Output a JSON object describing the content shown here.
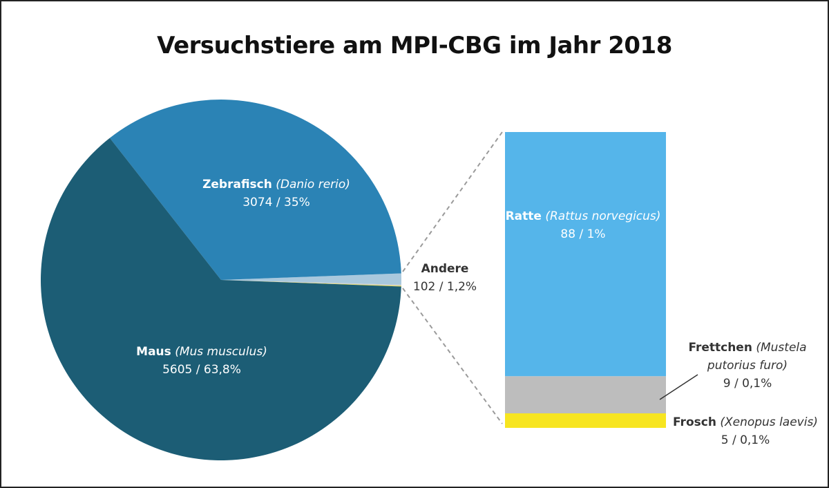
{
  "chart_data": {
    "type": "pie",
    "title": "Versuchstiere am MPI-CBG im Jahr 2018",
    "slices": [
      {
        "name": "Maus",
        "latin": "(Mus musculus)",
        "value": 5605,
        "percent_label": "5605 / 63,8%",
        "color": "#1c5d75"
      },
      {
        "name": "Zebrafisch",
        "latin": "(Danio rerio)",
        "value": 3074,
        "percent_label": "3074 / 35%",
        "color": "#2b83b5"
      },
      {
        "name": "Andere",
        "latin": "",
        "value": 102,
        "percent_label": "102 / 1,2%",
        "color": "#a9c8dd"
      }
    ],
    "breakdown": {
      "of": "Andere",
      "type": "stacked_bar",
      "segments": [
        {
          "name": "Ratte",
          "latin": "(Rattus norvegicus)",
          "value": 88,
          "percent_label": "88 / 1%",
          "color": "#55b5ea"
        },
        {
          "name": "Frettchen",
          "latin": "(Mustela putorius furo)",
          "latin_line1": "(Mustela",
          "latin_line2": "putorius furo)",
          "value": 9,
          "percent_label": "9 / 0,1%",
          "color": "#bdbdbd"
        },
        {
          "name": "Frosch",
          "latin": "(Xenopus laevis)",
          "value": 5,
          "percent_label": "5 / 0,1%",
          "color": "#f7e520"
        }
      ]
    }
  }
}
